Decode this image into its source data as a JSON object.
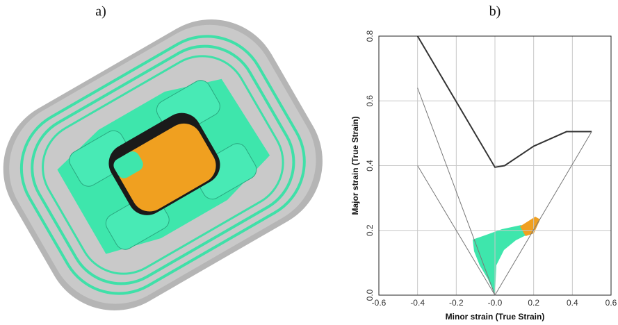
{
  "panel_a_label": "a)",
  "chart_data": {
    "type": "line",
    "panel_label": "b)",
    "xlabel": "Minor strain (True Strain)",
    "ylabel": "Major strain (True Strain)",
    "xlim": [
      -0.6,
      0.6
    ],
    "ylim": [
      0,
      0.8
    ],
    "xticks": [
      -0.6,
      -0.4,
      -0.2,
      {
        "value": 0,
        "label": "-0.0"
      },
      0.2,
      0.4,
      0.6
    ],
    "yticks": [
      {
        "value": 0,
        "label": "0.0"
      },
      0.2,
      0.4,
      0.6,
      0.8
    ],
    "grid": true,
    "series": [
      {
        "color": "#333333",
        "x": [
          -0.4,
          0,
          0.05,
          0.2,
          0.37,
          0.5
        ],
        "values": [
          0.8,
          0.395,
          0.4,
          0.46,
          0.505,
          0.505
        ]
      },
      {
        "color": "#777777",
        "x": [
          -0.4,
          0,
          0.5
        ],
        "values": [
          0.64,
          0,
          0.505
        ]
      },
      {
        "color": "#777777",
        "x": [
          -0.4,
          0
        ],
        "values": [
          0.4,
          0
        ]
      }
    ]
  }
}
